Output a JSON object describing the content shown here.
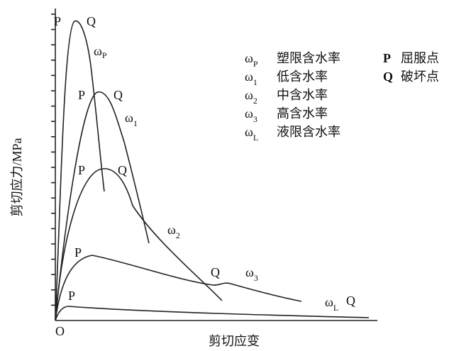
{
  "axes": {
    "y_label": "剪切应力/MPa",
    "x_label": "剪切应变",
    "origin": "O"
  },
  "legend": {
    "moisture": [
      {
        "symbol": "ω",
        "sub": "P",
        "text": "塑限含水率"
      },
      {
        "symbol": "ω",
        "sub": "1",
        "text": "低含水率"
      },
      {
        "symbol": "ω",
        "sub": "2",
        "text": "中含水率"
      },
      {
        "symbol": "ω",
        "sub": "3",
        "text": "高含水率"
      },
      {
        "symbol": "ω",
        "sub": "L",
        "text": "液限含水率"
      }
    ],
    "points": [
      {
        "symbol": "P",
        "text": "屈服点"
      },
      {
        "symbol": "Q",
        "text": "破坏点"
      }
    ]
  },
  "curves": [
    {
      "symbol": "ω",
      "sub": "P",
      "p": "P",
      "q": "Q"
    },
    {
      "symbol": "ω",
      "sub": "1",
      "p": "P",
      "q": "Q"
    },
    {
      "symbol": "ω",
      "sub": "2",
      "p": "P",
      "q": "Q"
    },
    {
      "symbol": "ω",
      "sub": "3",
      "p": "P",
      "q": "Q"
    },
    {
      "symbol": "ω",
      "sub": "L",
      "p": "P",
      "q": "Q"
    }
  ]
}
